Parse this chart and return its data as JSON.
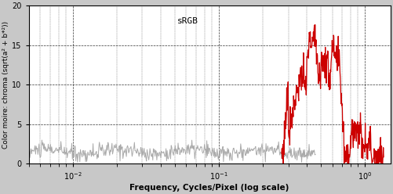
{
  "title": "sRGB",
  "xlabel": "Frequency, Cycles/Pixel (log scale)",
  "ylabel": "Color moire: chroma (sqrt(a² + b*²))",
  "xlim": [
    0.005,
    1.5
  ],
  "ylim": [
    0,
    20
  ],
  "yticks": [
    0,
    5,
    10,
    15,
    20
  ],
  "gray_color": "#aaaaaa",
  "red_color": "#cc0000",
  "background_color": "#c8c8c8",
  "plot_bg_color": "#ffffff",
  "seed_gray": 10,
  "seed_red": 77
}
